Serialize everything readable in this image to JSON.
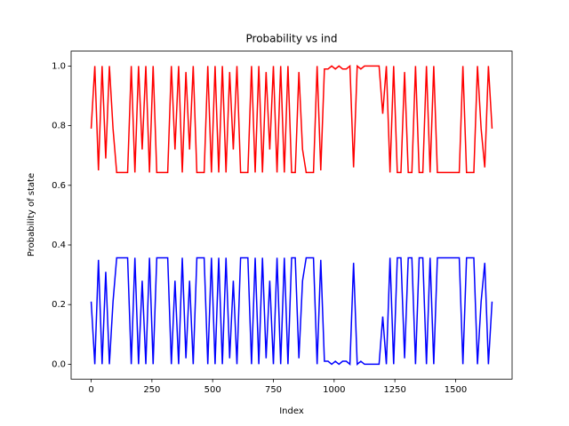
{
  "chart_data": {
    "type": "line",
    "title": "Probability vs ind",
    "x_label": "Index",
    "y_label": "Probability of state",
    "x": [
      0,
      15,
      30,
      45,
      60,
      75,
      90,
      105,
      120,
      135,
      150,
      165,
      180,
      195,
      210,
      225,
      240,
      255,
      270,
      285,
      300,
      315,
      330,
      345,
      360,
      375,
      390,
      405,
      420,
      435,
      450,
      465,
      480,
      495,
      510,
      525,
      540,
      555,
      570,
      585,
      600,
      615,
      630,
      645,
      660,
      675,
      690,
      705,
      720,
      735,
      750,
      765,
      780,
      795,
      810,
      825,
      840,
      855,
      870,
      885,
      900,
      915,
      930,
      945,
      960,
      975,
      990,
      1005,
      1020,
      1035,
      1050,
      1065,
      1080,
      1095,
      1110,
      1125,
      1140,
      1155,
      1170,
      1185,
      1200,
      1215,
      1230,
      1245,
      1260,
      1275,
      1290,
      1305,
      1320,
      1335,
      1350,
      1365,
      1380,
      1395,
      1410,
      1425,
      1440,
      1455,
      1470,
      1485,
      1500,
      1515,
      1530,
      1545,
      1560,
      1575,
      1590,
      1605,
      1620,
      1635,
      1650
    ],
    "series": [
      {
        "name": "red",
        "color": "#ff0000",
        "values": [
          0.79,
          1,
          0.65,
          1,
          0.69,
          1,
          0.79,
          0.643,
          0.643,
          0.643,
          0.643,
          1,
          0.643,
          1,
          0.72,
          1,
          0.643,
          1,
          0.643,
          0.643,
          0.643,
          0.643,
          1,
          0.72,
          1,
          0.643,
          0.98,
          0.72,
          1,
          0.643,
          0.643,
          0.643,
          1,
          0.643,
          1,
          0.643,
          1,
          0.643,
          0.98,
          0.72,
          1,
          0.643,
          0.643,
          0.643,
          1,
          0.643,
          1,
          0.643,
          0.98,
          0.72,
          1,
          0.643,
          1,
          0.643,
          1,
          0.643,
          0.643,
          0.98,
          0.72,
          0.643,
          0.643,
          0.643,
          1,
          0.65,
          0.99,
          0.99,
          1,
          0.99,
          1,
          0.99,
          0.99,
          1,
          0.66,
          1,
          0.99,
          1,
          1,
          1,
          1,
          1,
          0.84,
          1,
          0.643,
          1,
          0.643,
          0.643,
          0.98,
          0.643,
          0.643,
          1,
          0.643,
          0.643,
          1,
          0.643,
          1,
          0.643,
          0.643,
          0.643,
          0.643,
          0.643,
          0.643,
          0.643,
          1,
          0.643,
          0.643,
          0.643,
          1,
          0.79,
          0.66,
          1,
          0.79
        ]
      },
      {
        "name": "blue",
        "color": "#0000ff",
        "values": [
          0.21,
          0,
          0.35,
          0,
          0.31,
          0,
          0.21,
          0.357,
          0.357,
          0.357,
          0.357,
          0,
          0.357,
          0,
          0.28,
          0,
          0.357,
          0,
          0.357,
          0.357,
          0.357,
          0.357,
          0,
          0.28,
          0,
          0.357,
          0.02,
          0.28,
          0,
          0.357,
          0.357,
          0.357,
          0,
          0.357,
          0,
          0.357,
          0,
          0.357,
          0.02,
          0.28,
          0,
          0.357,
          0.357,
          0.357,
          0,
          0.357,
          0,
          0.357,
          0.02,
          0.28,
          0,
          0.357,
          0,
          0.357,
          0,
          0.357,
          0.357,
          0.02,
          0.28,
          0.357,
          0.357,
          0.357,
          0,
          0.35,
          0.01,
          0.01,
          0,
          0.01,
          0,
          0.01,
          0.01,
          0,
          0.34,
          0,
          0.01,
          0,
          0,
          0,
          0,
          0,
          0.16,
          0,
          0.357,
          0,
          0.357,
          0.357,
          0.02,
          0.357,
          0.357,
          0,
          0.357,
          0.357,
          0,
          0.357,
          0,
          0.357,
          0.357,
          0.357,
          0.357,
          0.357,
          0.357,
          0.357,
          0,
          0.357,
          0.357,
          0.357,
          0,
          0.21,
          0.34,
          0,
          0.21
        ]
      }
    ],
    "xlim": [
      -82.5,
      1732.5
    ],
    "ylim": [
      -0.05,
      1.05
    ],
    "xticks": [
      0,
      250,
      500,
      750,
      1000,
      1250,
      1500
    ],
    "yticks": [
      {
        "value": 0,
        "label": "0.0"
      },
      0.2,
      0.4,
      0.6,
      0.8,
      {
        "value": 1,
        "label": "1.0"
      }
    ]
  }
}
